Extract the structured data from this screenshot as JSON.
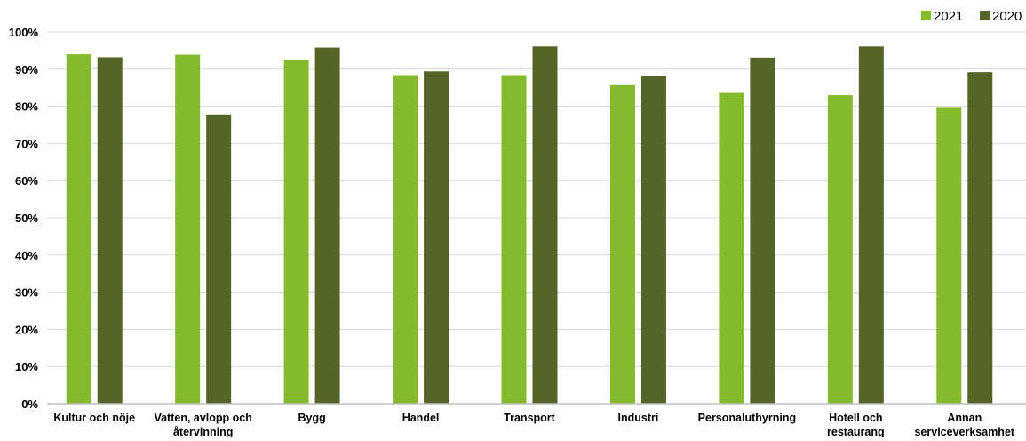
{
  "chart_data": {
    "type": "bar",
    "categories": [
      [
        "Kultur och nöje"
      ],
      [
        "Vatten, avlopp och",
        "återvinning"
      ],
      [
        "Bygg"
      ],
      [
        "Handel"
      ],
      [
        "Transport"
      ],
      [
        "Industri"
      ],
      [
        "Personaluthyrning"
      ],
      [
        "Hotell och",
        "restaurang"
      ],
      [
        "Annan",
        "serviceverksamhet"
      ]
    ],
    "series": [
      {
        "name": "2021",
        "color": "#84BB2C",
        "values": [
          94,
          93.9,
          92.5,
          88.4,
          88.4,
          85.7,
          83.6,
          83,
          79.8
        ]
      },
      {
        "name": "2020",
        "color": "#556427",
        "values": [
          93.2,
          77.8,
          95.8,
          89.4,
          96.1,
          88.1,
          93.1,
          96.1,
          89.2
        ]
      }
    ],
    "ylim": [
      0,
      100
    ],
    "y_ticks": [
      0,
      10,
      20,
      30,
      40,
      50,
      60,
      70,
      80,
      90,
      100
    ],
    "y_tick_labels": [
      "0%",
      "10%",
      "20%",
      "30%",
      "40%",
      "50%",
      "60%",
      "70%",
      "80%",
      "90%",
      "100%"
    ],
    "legend": {
      "position": "top-right",
      "order": [
        "2021",
        "2020"
      ]
    },
    "grid": true,
    "gridline_color": "#D9D9D9",
    "axis_color": "#BFBFBF"
  }
}
